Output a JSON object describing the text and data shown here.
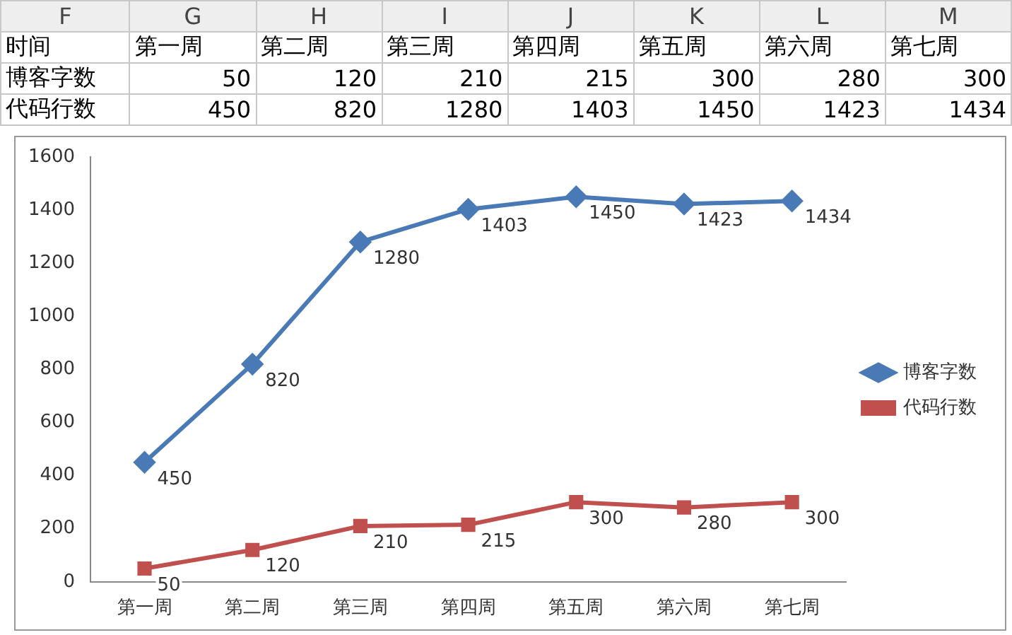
{
  "chart_data": {
    "type": "line",
    "categories": [
      "第一周",
      "第二周",
      "第三周",
      "第四周",
      "第五周",
      "第六周",
      "第七周"
    ],
    "series": [
      {
        "name": "博客字数",
        "color": "#4a7ab5",
        "marker": "diamond",
        "values": [
          450,
          820,
          1280,
          1403,
          1450,
          1423,
          1434
        ]
      },
      {
        "name": "代码行数",
        "color": "#c0504d",
        "marker": "square",
        "values": [
          50,
          120,
          210,
          215,
          300,
          280,
          300
        ]
      }
    ],
    "ylim": [
      0,
      1600
    ],
    "yticks": [
      0,
      200,
      400,
      600,
      800,
      1000,
      1200,
      1400,
      1600
    ],
    "grid": false,
    "legend": "right",
    "data_labels": true,
    "annotations": [
      "F",
      "G",
      "H",
      "I",
      "J",
      "K",
      "L",
      "M",
      "时间",
      "第一周",
      "第二周",
      "第三周",
      "第四周",
      "第五周",
      "第六周",
      "第七周",
      "博客字数",
      "50",
      "120",
      "210",
      "215",
      "300",
      "280",
      "300",
      "代码行数",
      "450",
      "820",
      "1280",
      "1403",
      "1450",
      "1423",
      "1434"
    ]
  }
}
